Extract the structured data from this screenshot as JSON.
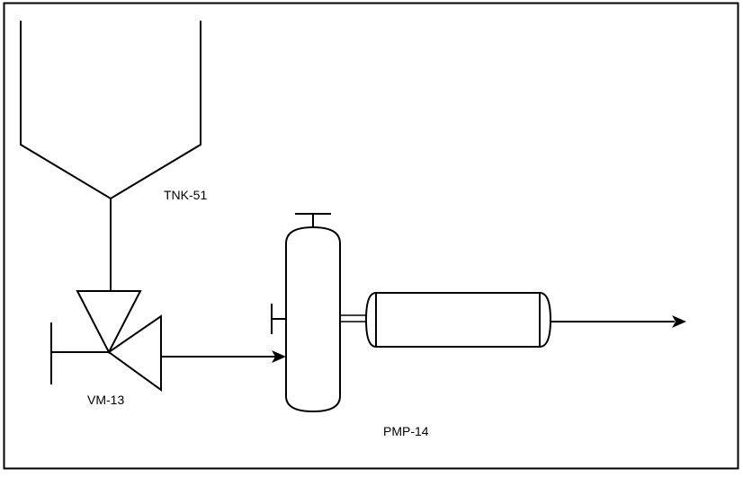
{
  "diagram": {
    "labels": {
      "tank": "TNK-51",
      "valve": "VM-13",
      "pump": "PMP-14"
    }
  },
  "colors": {
    "line": "#000000",
    "background": "#ffffff",
    "frame": "#000000"
  }
}
